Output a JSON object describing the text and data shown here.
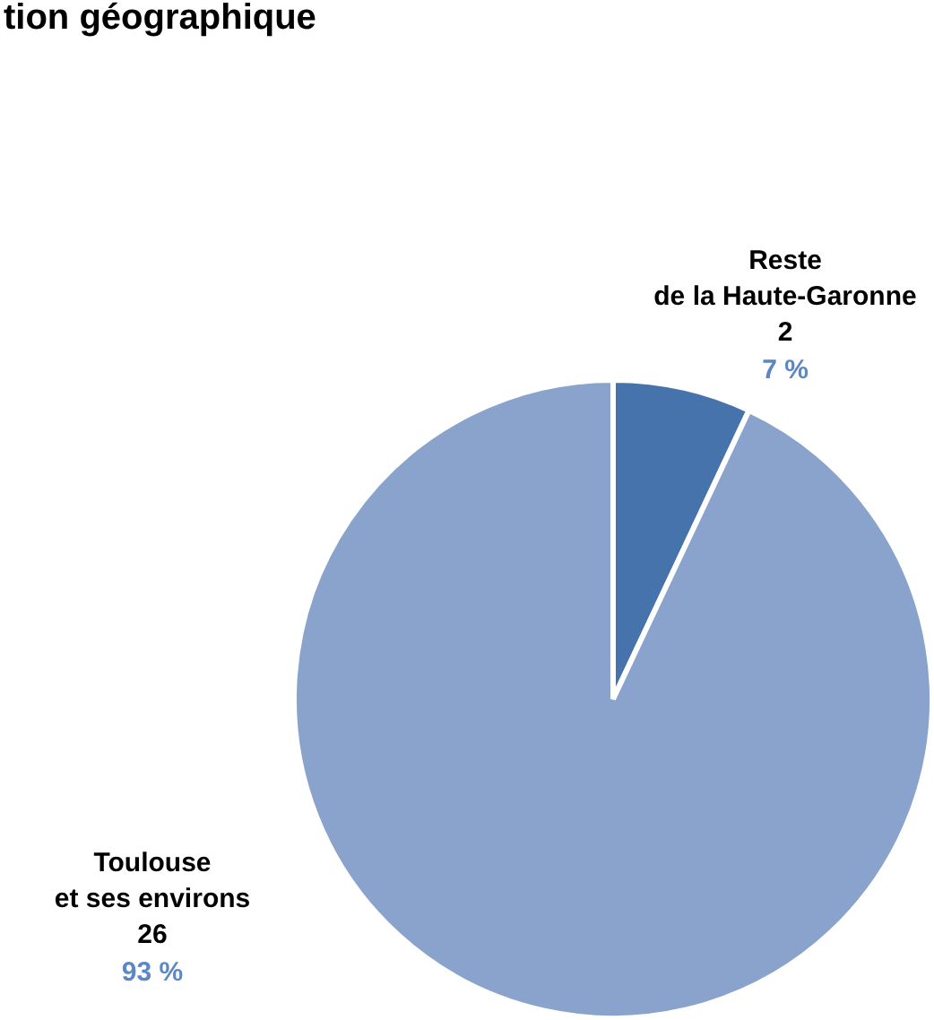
{
  "chart_data": {
    "type": "pie",
    "title": "tion géographique",
    "categories": [
      "Reste\nde la Haute-Garonne",
      "Toulouse\net ses environs"
    ],
    "values": [
      7,
      93
    ],
    "annotations": [
      "2",
      "26"
    ],
    "value_labels": [
      "7 %",
      "93 %"
    ],
    "colors": [
      "#4673ab",
      "#8aa3cd"
    ]
  }
}
